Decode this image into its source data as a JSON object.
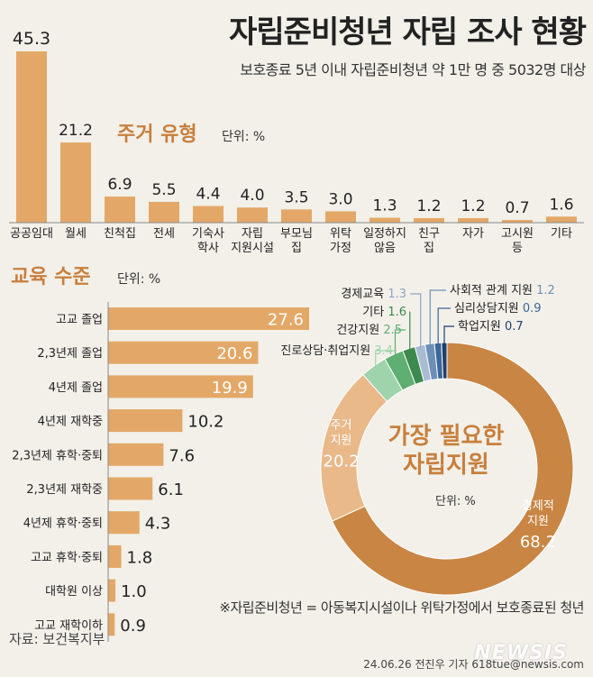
{
  "title": "자립준비청년 자립 조사 현황",
  "subtitle": "보호종료 5년 이내 자립준비청년 약 1만 명 중 5032명 대상",
  "colors": {
    "bar": "#e3a867",
    "accent": "#c87f3c",
    "donut_main": "#c98543",
    "donut_second": "#e9b98a"
  },
  "chart_data": [
    {
      "type": "bar",
      "title": "주거 유형",
      "unit": "단위: %",
      "categories": [
        "공공임대",
        "월세",
        "친척집",
        "전세",
        "기숙사\n학사",
        "자립\n지원시설",
        "부모님\n집",
        "위탁\n가정",
        "일정하지\n않음",
        "친구\n집",
        "자가",
        "고시원\n등",
        "기타"
      ],
      "values": [
        45.3,
        21.2,
        6.9,
        5.5,
        4.4,
        4.0,
        3.5,
        3.0,
        1.3,
        1.2,
        1.2,
        0.7,
        1.6
      ]
    },
    {
      "type": "bar",
      "orientation": "horizontal",
      "title": "교육 수준",
      "unit": "단위: %",
      "categories": [
        "고교 졸업",
        "2,3년제 졸업",
        "4년제 졸업",
        "4년제 재학중",
        "2,3년제 휴학·중퇴",
        "2,3년제 재학중",
        "4년제 휴학·중퇴",
        "고교 휴학·중퇴",
        "대학원 이상",
        "고교 재학이하"
      ],
      "values": [
        27.6,
        20.6,
        19.9,
        10.2,
        7.6,
        6.1,
        4.3,
        1.8,
        1.0,
        0.9
      ]
    },
    {
      "type": "pie",
      "title": "가장 필요한 자립지원",
      "unit": "단위: %",
      "categories": [
        "경제적 지원",
        "주거 지원",
        "진로상담·취업지원",
        "건강지원",
        "기타",
        "경제교육",
        "사회적 관계 지원",
        "심리상담지원",
        "학업지원"
      ],
      "label_lines": [
        [
          "경제적",
          "지원"
        ],
        [
          "주거",
          "지원"
        ]
      ],
      "values": [
        68.2,
        20.2,
        3.4,
        2.5,
        1.6,
        1.3,
        1.2,
        0.9,
        0.7
      ],
      "colors": [
        "#c98543",
        "#e9b98a",
        "#9fd3ac",
        "#5fae72",
        "#3d8a4f",
        "#a9bcd4",
        "#6e8fb5",
        "#3d6797",
        "#1d3f6d"
      ]
    }
  ],
  "footnote": "※자립준비청년 = 아동복지시설이나 위탁가정에서 보호종료된 청년",
  "source": "자료: 보건복지부",
  "byline": "24.06.26 전진우 기자 618tue@newsis.com",
  "watermark": "NEWSIS"
}
